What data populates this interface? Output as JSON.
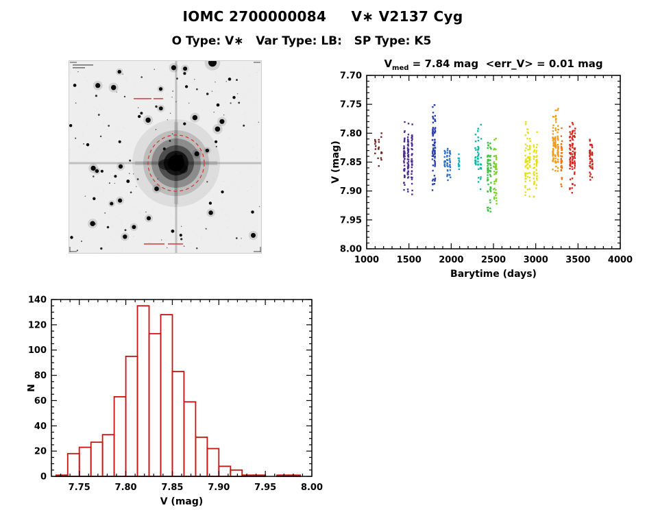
{
  "header": {
    "title": "IOMC 2700000084     V∗ V2137 Cyg",
    "subtitle": "O Type: V∗   Var Type: LB:   SP Type: K5"
  },
  "starfield": {
    "target_circle_color": "#d93025",
    "target_circle_style": "dashed"
  },
  "chart_data": [
    {
      "type": "scatter",
      "title": "Vmed = 7.84 mag <err_V> = 0.01 mag",
      "title_v": "V",
      "title_sub": "med",
      "title_rest": " = 7.84 mag  <err_V> = 0.01 mag",
      "v_med_mag": 7.84,
      "err_v_mag": 0.01,
      "xlabel": "Barytime (days)",
      "ylabel": "V (mag)",
      "xlim": [
        1000,
        4000
      ],
      "y_top": 7.7,
      "y_bottom": 8.0,
      "y_axis_inverted": true,
      "x_major_ticks": [
        1000,
        1500,
        2000,
        2500,
        3000,
        3500,
        4000
      ],
      "y_major_ticks": [
        7.7,
        7.75,
        7.8,
        7.85,
        7.9,
        7.95,
        8.0
      ],
      "x_minor_step": 100,
      "y_minor_step": 0.01,
      "marker": "square",
      "marker_size_px": 2.4,
      "clusters": [
        {
          "x": 1140,
          "x_spread": 35,
          "columns": 3,
          "n": 22,
          "v_mean": 7.83,
          "v_sigma": 0.013,
          "color": "#6e2420"
        },
        {
          "x": 1490,
          "x_spread": 45,
          "columns": 3,
          "n": 120,
          "v_mean": 7.845,
          "v_sigma": 0.028,
          "color": "#4a2d8e"
        },
        {
          "x": 1795,
          "x_spread": 12,
          "columns": 2,
          "n": 75,
          "v_mean": 7.825,
          "v_sigma": 0.032,
          "color": "#2c3fae"
        },
        {
          "x": 1955,
          "x_spread": 30,
          "columns": 3,
          "n": 45,
          "v_mean": 7.85,
          "v_sigma": 0.014,
          "color": "#2e6fd0"
        },
        {
          "x": 2090,
          "x_spread": 6,
          "columns": 1,
          "n": 12,
          "v_mean": 7.85,
          "v_sigma": 0.008,
          "color": "#18aec2"
        },
        {
          "x": 2320,
          "x_spread": 30,
          "columns": 3,
          "n": 45,
          "v_mean": 7.845,
          "v_sigma": 0.026,
          "color": "#10b4a2"
        },
        {
          "x": 2450,
          "x_spread": 15,
          "columns": 2,
          "n": 60,
          "v_mean": 7.862,
          "v_sigma": 0.032,
          "color": "#3cc13c"
        },
        {
          "x": 2520,
          "x_spread": 12,
          "columns": 2,
          "n": 45,
          "v_mean": 7.872,
          "v_sigma": 0.028,
          "color": "#7ccf2e"
        },
        {
          "x": 2905,
          "x_spread": 25,
          "columns": 3,
          "n": 70,
          "v_mean": 7.845,
          "v_sigma": 0.028,
          "color": "#e2df1e"
        },
        {
          "x": 2995,
          "x_spread": 15,
          "columns": 2,
          "n": 45,
          "v_mean": 7.858,
          "v_sigma": 0.026,
          "color": "#eedc12"
        },
        {
          "x": 3235,
          "x_spread": 28,
          "columns": 3,
          "n": 90,
          "v_mean": 7.822,
          "v_sigma": 0.028,
          "color": "#f29b18"
        },
        {
          "x": 3305,
          "x_spread": 8,
          "columns": 1,
          "n": 35,
          "v_mean": 7.84,
          "v_sigma": 0.024,
          "color": "#ee7413"
        },
        {
          "x": 3435,
          "x_spread": 28,
          "columns": 3,
          "n": 90,
          "v_mean": 7.835,
          "v_sigma": 0.032,
          "color": "#d3281c"
        },
        {
          "x": 3655,
          "x_spread": 12,
          "columns": 2,
          "n": 40,
          "v_mean": 7.84,
          "v_sigma": 0.02,
          "color": "#cb2418"
        }
      ]
    },
    {
      "type": "histogram",
      "xlabel": "V (mag)",
      "ylabel": "N",
      "bar_color": "#cc1111",
      "bin_start": 7.725,
      "bin_width": 0.0125,
      "counts": [
        1,
        18,
        23,
        27,
        33,
        63,
        95,
        135,
        113,
        128,
        83,
        59,
        31,
        22,
        8,
        5,
        1,
        1,
        0,
        1,
        1
      ],
      "xlim": [
        7.72,
        8.0
      ],
      "ylim": [
        0,
        140
      ],
      "x_major_ticks": [
        7.75,
        7.8,
        7.85,
        7.9,
        7.95,
        8.0
      ],
      "y_major_ticks": [
        0,
        20,
        40,
        60,
        80,
        100,
        120,
        140
      ],
      "x_minor_step": 0.01,
      "y_minor_step": 5
    }
  ]
}
